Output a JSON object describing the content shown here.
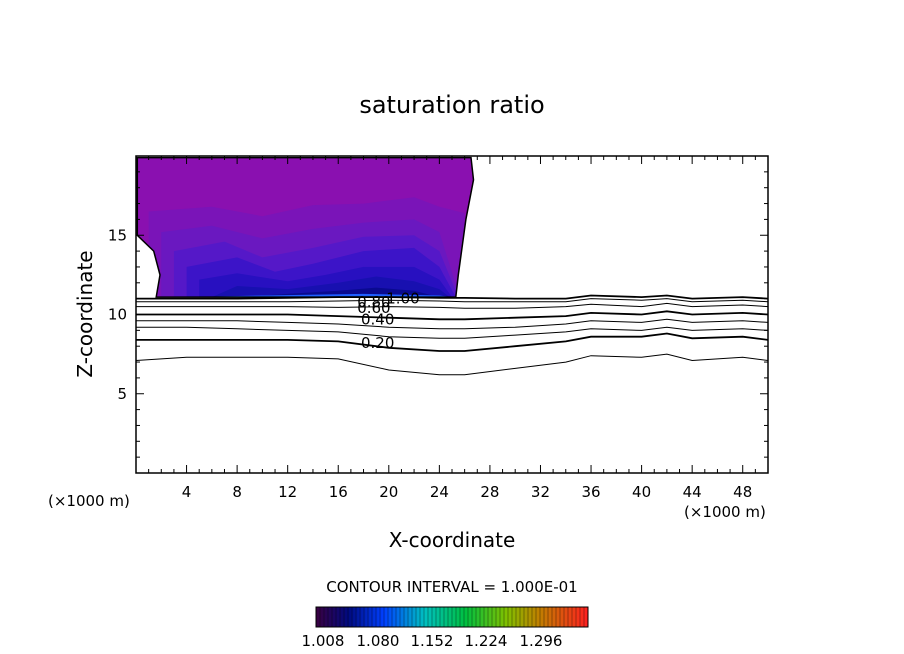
{
  "chart_data": {
    "type": "heatmap",
    "title": "saturation ratio",
    "xlabel": "X-coordinate",
    "ylabel": "Z-coordinate",
    "x_unit_left": "(×1000 m)",
    "x_unit_right": "(×1000 m)",
    "xlim": [
      0,
      50
    ],
    "ylim": [
      0,
      20
    ],
    "x_ticks": [
      4,
      8,
      12,
      16,
      20,
      24,
      28,
      32,
      36,
      40,
      44,
      48
    ],
    "y_ticks": [
      5,
      10,
      15
    ],
    "contour_interval_text": "CONTOUR INTERVAL = 1.000E-01",
    "colorbar_ticks": [
      "1.008",
      "1.080",
      "1.152",
      "1.224",
      "1.296"
    ],
    "contour_labels": [
      {
        "text": "1.00",
        "x": 19.8,
        "z": 11.0
      },
      {
        "text": "0.80",
        "x": 17.5,
        "z": 10.8
      },
      {
        "text": "0.60",
        "x": 17.5,
        "z": 10.4
      },
      {
        "text": "0.40",
        "x": 17.8,
        "z": 9.7
      },
      {
        "text": "0.20",
        "x": 17.8,
        "z": 8.2
      }
    ],
    "contour_lines": [
      {
        "level": 1.0,
        "x": [
          0,
          4,
          8,
          12,
          16,
          20,
          24,
          26,
          30,
          34,
          36,
          40,
          42,
          44,
          48,
          50
        ],
        "z": [
          11.0,
          11.0,
          11.0,
          11.05,
          11.1,
          11.1,
          11.05,
          11.05,
          11.0,
          11.0,
          11.2,
          11.1,
          11.2,
          11.0,
          11.1,
          11.0
        ]
      },
      {
        "level": 0.9,
        "x": [
          0,
          4,
          8,
          12,
          16,
          20,
          24,
          26,
          30,
          34,
          36,
          40,
          42,
          44,
          48,
          50
        ],
        "z": [
          10.8,
          10.8,
          10.8,
          10.8,
          10.85,
          10.9,
          10.85,
          10.8,
          10.8,
          10.8,
          11.0,
          10.9,
          11.0,
          10.8,
          10.9,
          10.8
        ]
      },
      {
        "level": 0.8,
        "x": [
          0,
          4,
          8,
          12,
          16,
          20,
          24,
          26,
          30,
          34,
          36,
          40,
          42,
          44,
          48,
          50
        ],
        "z": [
          10.5,
          10.5,
          10.5,
          10.5,
          10.45,
          10.5,
          10.45,
          10.4,
          10.4,
          10.5,
          10.65,
          10.5,
          10.7,
          10.5,
          10.6,
          10.5
        ]
      },
      {
        "level": 0.6,
        "x": [
          0,
          4,
          8,
          12,
          16,
          20,
          24,
          26,
          30,
          34,
          36,
          40,
          42,
          44,
          48,
          50
        ],
        "z": [
          10.0,
          10.0,
          10.0,
          10.0,
          9.9,
          9.8,
          9.7,
          9.7,
          9.8,
          9.9,
          10.1,
          10.0,
          10.2,
          10.0,
          10.1,
          10.0
        ]
      },
      {
        "level": 0.4,
        "x": [
          0,
          4,
          8,
          12,
          16,
          20,
          24,
          26,
          30,
          34,
          36,
          40,
          42,
          44,
          48,
          50
        ],
        "z": [
          9.6,
          9.6,
          9.6,
          9.5,
          9.4,
          9.2,
          9.1,
          9.1,
          9.2,
          9.4,
          9.6,
          9.5,
          9.7,
          9.5,
          9.6,
          9.5
        ]
      },
      {
        "level": 0.3,
        "x": [
          0,
          4,
          8,
          12,
          16,
          20,
          24,
          26,
          30,
          34,
          36,
          40,
          42,
          44,
          48,
          50
        ],
        "z": [
          9.2,
          9.2,
          9.1,
          9.0,
          8.9,
          8.6,
          8.5,
          8.5,
          8.7,
          8.9,
          9.1,
          9.0,
          9.2,
          9.0,
          9.1,
          9.0
        ]
      },
      {
        "level": 0.2,
        "x": [
          0,
          4,
          8,
          12,
          16,
          20,
          24,
          26,
          30,
          34,
          36,
          40,
          42,
          44,
          48,
          50
        ],
        "z": [
          8.4,
          8.4,
          8.4,
          8.4,
          8.3,
          7.9,
          7.7,
          7.7,
          8.0,
          8.3,
          8.6,
          8.6,
          8.8,
          8.5,
          8.6,
          8.4
        ]
      },
      {
        "level": 0.1,
        "x": [
          0,
          4,
          8,
          12,
          16,
          20,
          24,
          26,
          30,
          34,
          36,
          40,
          42,
          44,
          48,
          50
        ],
        "z": [
          7.1,
          7.3,
          7.3,
          7.3,
          7.2,
          6.5,
          6.2,
          6.2,
          6.6,
          7.0,
          7.4,
          7.3,
          7.5,
          7.1,
          7.3,
          7.1
        ]
      }
    ],
    "supersaturated_region": {
      "outline_x": [
        0.1,
        26.5,
        26.7,
        26.1,
        25.5,
        25.3,
        4.0,
        1.6,
        1.9,
        1.4,
        0.1
      ],
      "outline_z": [
        19.9,
        19.9,
        18.5,
        16.0,
        12.5,
        11.1,
        11.1,
        11.1,
        12.5,
        14.0,
        15.0
      ]
    }
  }
}
